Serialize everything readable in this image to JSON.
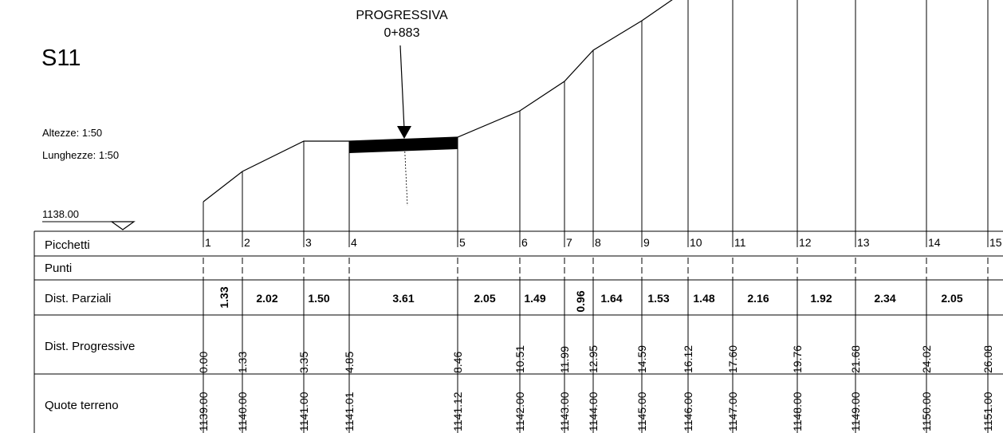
{
  "drawing": {
    "section_id": "S11",
    "scale_heights": "Altezze:  1:50",
    "scale_lengths": "Lunghezze: 1:50",
    "datum": "1138.00",
    "progressiva_label": "PROGRESSIVA",
    "progressiva_value": "0+883"
  },
  "table": {
    "row_labels": {
      "picchetti": "Picchetti",
      "punti": "Punti",
      "dist_parziali": "Dist. Parziali",
      "dist_progressive": "Dist. Progressive",
      "quote_terreno": "Quote terreno"
    },
    "picchetti": [
      "1",
      "2",
      "3",
      "4",
      "5",
      "6",
      "7",
      "8",
      "9",
      "10",
      "11",
      "12",
      "13",
      "14",
      "15"
    ],
    "dist_parziali": [
      "1.33",
      "2.02",
      "1.50",
      "3.61",
      "2.05",
      "1.49",
      "0.96",
      "1.64",
      "1.53",
      "1.48",
      "2.16",
      "1.92",
      "2.34",
      "2.05"
    ],
    "dist_progressive": [
      "0.00",
      "1.33",
      "3.35",
      "4.85",
      "8.46",
      "10.51",
      "11.99",
      "12.95",
      "14.59",
      "16.12",
      "17.60",
      "19.76",
      "21.68",
      "24.02",
      "26.08"
    ],
    "quote_terreno": [
      "1139.00",
      "1140.00",
      "1141.00",
      "1141.01",
      "1141.12",
      "1142.00",
      "1143.00",
      "1144.00",
      "1145.00",
      "1146.00",
      "1147.00",
      "1148.00",
      "1149.00",
      "1150.00",
      "1151.00"
    ]
  }
}
